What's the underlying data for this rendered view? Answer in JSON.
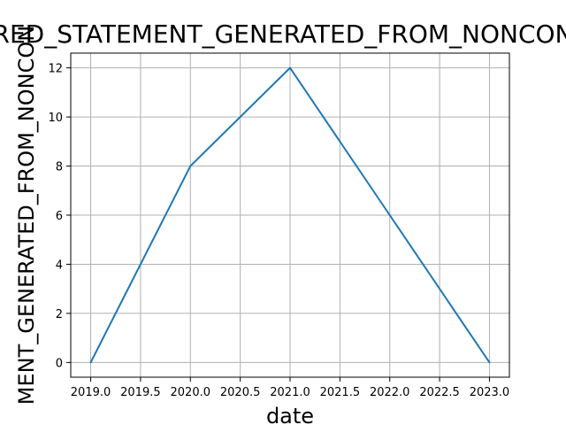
{
  "chart_data": {
    "type": "line",
    "title": "RED_STATEMENT_GENERATED_FROM_NONCON",
    "xlabel": "date",
    "ylabel": "MENT_GENERATED_FROM_NONCON",
    "x": [
      2019.0,
      2020.0,
      2021.0,
      2022.0,
      2023.0
    ],
    "series": [
      {
        "values": [
          0,
          8,
          12,
          6,
          0
        ],
        "color": "#1f77b4"
      }
    ],
    "xlim": [
      2018.8,
      2023.2
    ],
    "ylim": [
      -0.6,
      12.6
    ],
    "xticks": [
      2019.0,
      2019.5,
      2020.0,
      2020.5,
      2021.0,
      2021.5,
      2022.0,
      2022.5,
      2023.0
    ],
    "xtick_labels": [
      "2019.0",
      "2019.5",
      "2020.0",
      "2020.5",
      "2021.0",
      "2021.5",
      "2022.0",
      "2022.5",
      "2023.0"
    ],
    "yticks": [
      0,
      2,
      4,
      6,
      8,
      10,
      12
    ],
    "ytick_labels": [
      "0",
      "2",
      "4",
      "6",
      "8",
      "10",
      "12"
    ],
    "grid": true
  }
}
